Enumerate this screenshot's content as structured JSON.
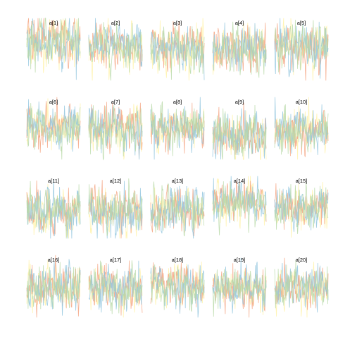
{
  "chart_data": {
    "type": "line",
    "description_of_panels": "trace plots, 4 chains per parameter",
    "grid": false,
    "panels": [
      {
        "label": "a[1]",
        "center": 0.62,
        "sd": 0.2
      },
      {
        "label": "a[2]",
        "center": 0.55,
        "sd": 0.17
      },
      {
        "label": "a[3]",
        "center": 0.52,
        "sd": 0.18
      },
      {
        "label": "a[4]",
        "center": 0.5,
        "sd": 0.18
      },
      {
        "label": "a[5]",
        "center": 0.55,
        "sd": 0.18
      },
      {
        "label": "a[6]",
        "center": 0.52,
        "sd": 0.16
      },
      {
        "label": "a[7]",
        "center": 0.48,
        "sd": 0.18
      },
      {
        "label": "a[8]",
        "center": 0.52,
        "sd": 0.17
      },
      {
        "label": "a[9]",
        "center": 0.38,
        "sd": 0.18
      },
      {
        "label": "a[10]",
        "center": 0.45,
        "sd": 0.17
      },
      {
        "label": "a[11]",
        "center": 0.45,
        "sd": 0.18
      },
      {
        "label": "a[12]",
        "center": 0.45,
        "sd": 0.18
      },
      {
        "label": "a[13]",
        "center": 0.45,
        "sd": 0.17
      },
      {
        "label": "a[14]",
        "center": 0.58,
        "sd": 0.16
      },
      {
        "label": "a[15]",
        "center": 0.48,
        "sd": 0.16
      },
      {
        "label": "a[16]",
        "center": 0.5,
        "sd": 0.18
      },
      {
        "label": "a[17]",
        "center": 0.47,
        "sd": 0.18
      },
      {
        "label": "a[18]",
        "center": 0.5,
        "sd": 0.16
      },
      {
        "label": "a[19]",
        "center": 0.48,
        "sd": 0.17
      },
      {
        "label": "a[20]",
        "center": 0.48,
        "sd": 0.16
      }
    ],
    "series": [
      {
        "color": "#FFF2A8"
      },
      {
        "color": "#F4A582"
      },
      {
        "color": "#92C5DE"
      },
      {
        "color": "#B8D9A8"
      }
    ],
    "iterations": 120
  }
}
